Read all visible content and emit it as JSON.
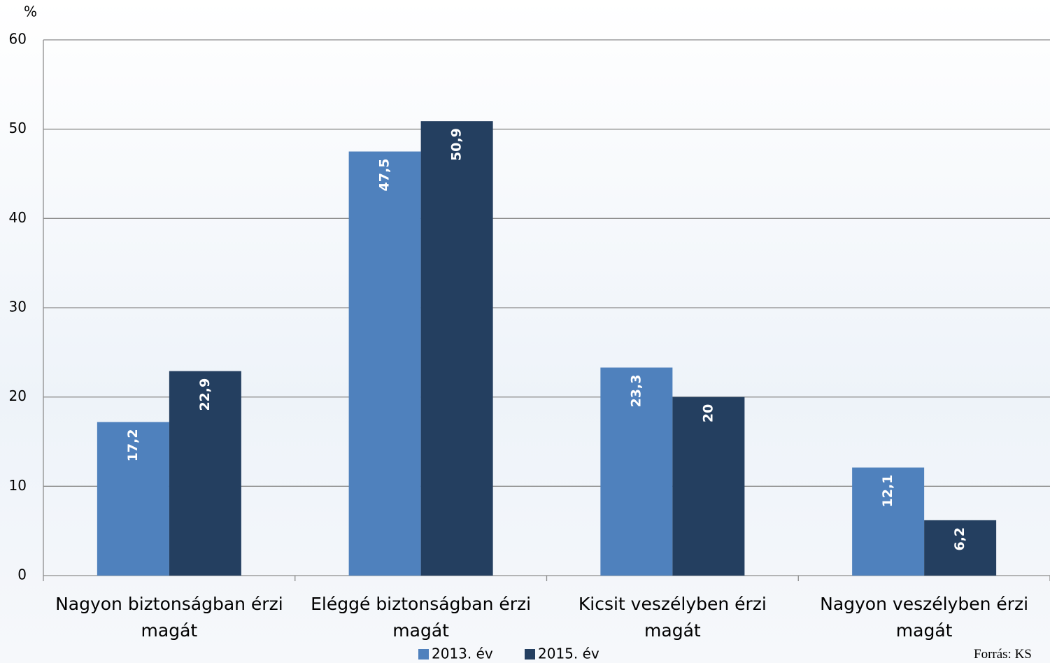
{
  "chart_data": {
    "type": "bar",
    "y_label": "%",
    "categories": [
      "Nagyon biztonságban érzi magát",
      "Eléggé biztonságban érzi magát",
      "Kicsit veszélyben érzi magát",
      "Nagyon veszélyben érzi magát"
    ],
    "series": [
      {
        "name": "2013. év",
        "color": "#4f81bd",
        "values": [
          17.2,
          47.5,
          23.3,
          12.1
        ],
        "value_labels": [
          "17,2",
          "47,5",
          "23,3",
          "12,1"
        ]
      },
      {
        "name": "2015. év",
        "color": "#243f60",
        "values": [
          22.9,
          50.9,
          20,
          6.2
        ],
        "value_labels": [
          "22,9",
          "50,9",
          "20",
          "6,2"
        ]
      }
    ],
    "ylim": [
      0,
      60
    ],
    "yticks": [
      0,
      10,
      20,
      30,
      40,
      50,
      60
    ],
    "grid": true,
    "source": "Forrás: KS"
  }
}
